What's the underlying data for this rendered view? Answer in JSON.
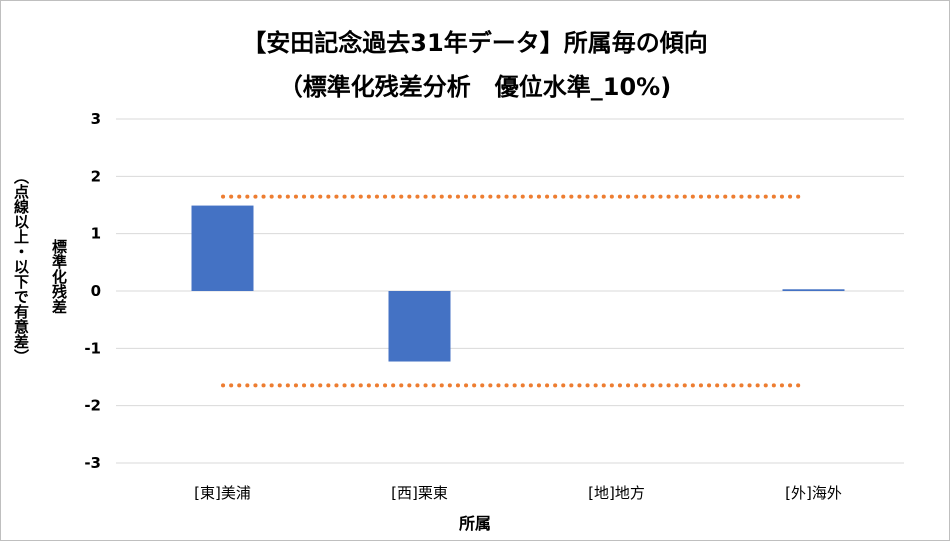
{
  "chart_data": {
    "type": "bar",
    "title_line1": "【安田記念過去31年データ】所属毎の傾向",
    "title_line2": "（標準化残差分析　優位水準_10%)",
    "xlabel": "所属",
    "ylabel_main": "標準化残差",
    "ylabel_sub": "（点線以上・以下で有意差）",
    "categories": [
      "[東]美浦",
      "[西]栗東",
      "[地]地方",
      "[外]海外"
    ],
    "values": [
      1.49,
      -1.23,
      0.0,
      0.03
    ],
    "ylim": [
      -3,
      3
    ],
    "yticks": [
      3,
      2,
      1,
      0,
      -1,
      -2,
      -3
    ],
    "threshold_upper": 1.645,
    "threshold_lower": -1.645,
    "grid": true,
    "bar_color": "#4472C4",
    "threshold_color": "#ED7D31",
    "grid_color": "#D9D9D9"
  }
}
